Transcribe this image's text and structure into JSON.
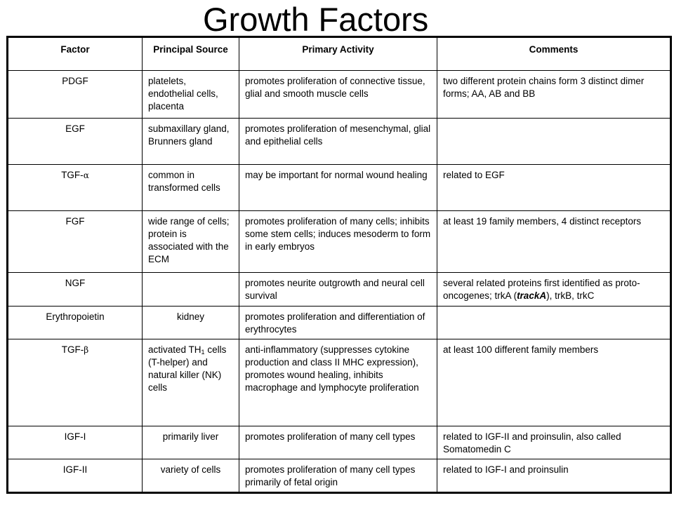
{
  "title": "Growth Factors",
  "headers": [
    "Factor",
    "Principal Source",
    "Primary Activity",
    "Comments"
  ],
  "rows": [
    {
      "factor": "PDGF",
      "source": "platelets, endothelial cells, placenta",
      "activity": "promotes proliferation of connective tissue, glial and smooth muscle cells",
      "comments": "two different protein chains form 3 distinct dimer forms; AA, AB and BB"
    },
    {
      "factor": "EGF",
      "source": "submaxillary gland, Brunners gland",
      "activity": "promotes proliferation of mesenchymal, glial and epithelial cells",
      "comments": ""
    },
    {
      "factor_prefix": "TGF-",
      "factor_symbol": "α",
      "source": "common in transformed cells",
      "activity": "may be important for normal wound healing",
      "comments": "related to EGF"
    },
    {
      "factor": "FGF",
      "source": "wide range of cells; protein is associated with the ECM",
      "activity": "promotes proliferation of many cells; inhibits some stem cells; induces mesoderm to form in early embryos",
      "comments": "at least 19 family members, 4 distinct receptors"
    },
    {
      "factor": "NGF",
      "source": "",
      "activity": "promotes neurite outgrowth and neural cell survival",
      "comments_before": "several related proteins first identified as proto-oncogenes; trkA (",
      "comments_italic": "trackA",
      "comments_after": "), trkB, trkC"
    },
    {
      "factor": "Erythropoietin",
      "source": "kidney",
      "activity": "promotes proliferation and differentiation of erythrocytes",
      "comments": ""
    },
    {
      "factor_prefix": "TGF-",
      "factor_symbol": "β",
      "source_before": "activated TH",
      "source_sub": "1",
      "source_after": " cells (T-helper) and natural killer (NK) cells",
      "activity": "anti-inflammatory (suppresses cytokine production and class II MHC expression), promotes wound healing, inhibits macrophage and lymphocyte proliferation",
      "comments": "at least 100 different family members"
    },
    {
      "factor": "IGF-I",
      "source": "primarily liver",
      "activity": "promotes proliferation of many cell types",
      "comments": "related to IGF-II and proinsulin, also called Somatomedin C"
    },
    {
      "factor": "IGF-II",
      "source": "variety of cells",
      "activity": "promotes proliferation of many cell types primarily of fetal origin",
      "comments": "related to IGF-I and proinsulin"
    }
  ]
}
